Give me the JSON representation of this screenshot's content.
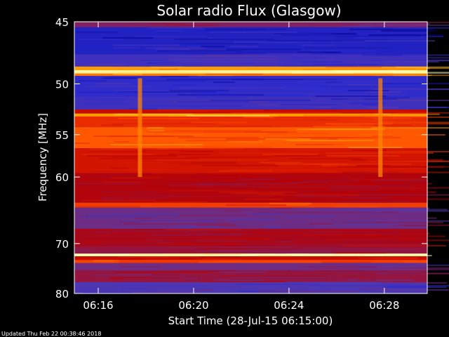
{
  "chart_data": {
    "type": "heatmap",
    "title": "Solar radio Flux (Glasgow)",
    "xlabel": "Start Time (28-Jul-15 06:15:00)",
    "ylabel": "Frequency [MHz]",
    "xlim": [
      "06:15:00",
      "06:29:48"
    ],
    "ylim": [
      45,
      80
    ],
    "y_scale": "reciprocal",
    "x_ticks": [
      "06:16",
      "06:20",
      "06:24",
      "06:28"
    ],
    "y_ticks": [
      45,
      50,
      55,
      60,
      70,
      80
    ],
    "colormap": [
      "#000090",
      "#2a2ad0",
      "#5a3aa8",
      "#8a1a50",
      "#b80000",
      "#e02000",
      "#ff5000",
      "#ffb000",
      "#ffffb0"
    ],
    "bands": [
      {
        "from_mhz": 45.0,
        "to_mhz": 45.4,
        "level": 0.35
      },
      {
        "from_mhz": 45.4,
        "to_mhz": 47.5,
        "level": 0.1
      },
      {
        "from_mhz": 47.5,
        "to_mhz": 48.5,
        "level": 0.18
      },
      {
        "from_mhz": 48.5,
        "to_mhz": 48.8,
        "level": 0.85
      },
      {
        "from_mhz": 48.8,
        "to_mhz": 49.1,
        "level": 0.98
      },
      {
        "from_mhz": 49.1,
        "to_mhz": 49.3,
        "level": 0.8
      },
      {
        "from_mhz": 49.3,
        "to_mhz": 51.2,
        "level": 0.14
      },
      {
        "from_mhz": 51.2,
        "to_mhz": 52.4,
        "level": 0.18
      },
      {
        "from_mhz": 52.4,
        "to_mhz": 52.8,
        "level": 0.55
      },
      {
        "from_mhz": 52.8,
        "to_mhz": 53.1,
        "level": 0.85
      },
      {
        "from_mhz": 53.1,
        "to_mhz": 54.2,
        "level": 0.66
      },
      {
        "from_mhz": 54.2,
        "to_mhz": 56.5,
        "level": 0.76
      },
      {
        "from_mhz": 56.5,
        "to_mhz": 59.5,
        "level": 0.58
      },
      {
        "from_mhz": 59.5,
        "to_mhz": 63.5,
        "level": 0.48
      },
      {
        "from_mhz": 63.5,
        "to_mhz": 64.2,
        "level": 0.7
      },
      {
        "from_mhz": 64.2,
        "to_mhz": 67.5,
        "level": 0.3
      },
      {
        "from_mhz": 67.5,
        "to_mhz": 70.5,
        "level": 0.46
      },
      {
        "from_mhz": 70.5,
        "to_mhz": 71.8,
        "level": 0.4
      },
      {
        "from_mhz": 71.8,
        "to_mhz": 72.3,
        "level": 1.0
      },
      {
        "from_mhz": 72.3,
        "to_mhz": 73.0,
        "level": 0.55
      },
      {
        "from_mhz": 73.0,
        "to_mhz": 73.6,
        "level": 0.72
      },
      {
        "from_mhz": 73.6,
        "to_mhz": 75.0,
        "level": 0.3
      },
      {
        "from_mhz": 75.0,
        "to_mhz": 77.5,
        "level": 0.4
      },
      {
        "from_mhz": 77.5,
        "to_mhz": 80.0,
        "level": 0.22
      }
    ],
    "annotations": [
      {
        "type": "vertical-streak",
        "time": "06:17:45",
        "from_mhz": 49.5,
        "to_mhz": 60.0
      },
      {
        "type": "vertical-streak",
        "time": "06:27:50",
        "from_mhz": 49.5,
        "to_mhz": 60.0
      }
    ]
  },
  "footer": {
    "updated": "Updated Thu Feb 22 00:38:46 2018"
  }
}
